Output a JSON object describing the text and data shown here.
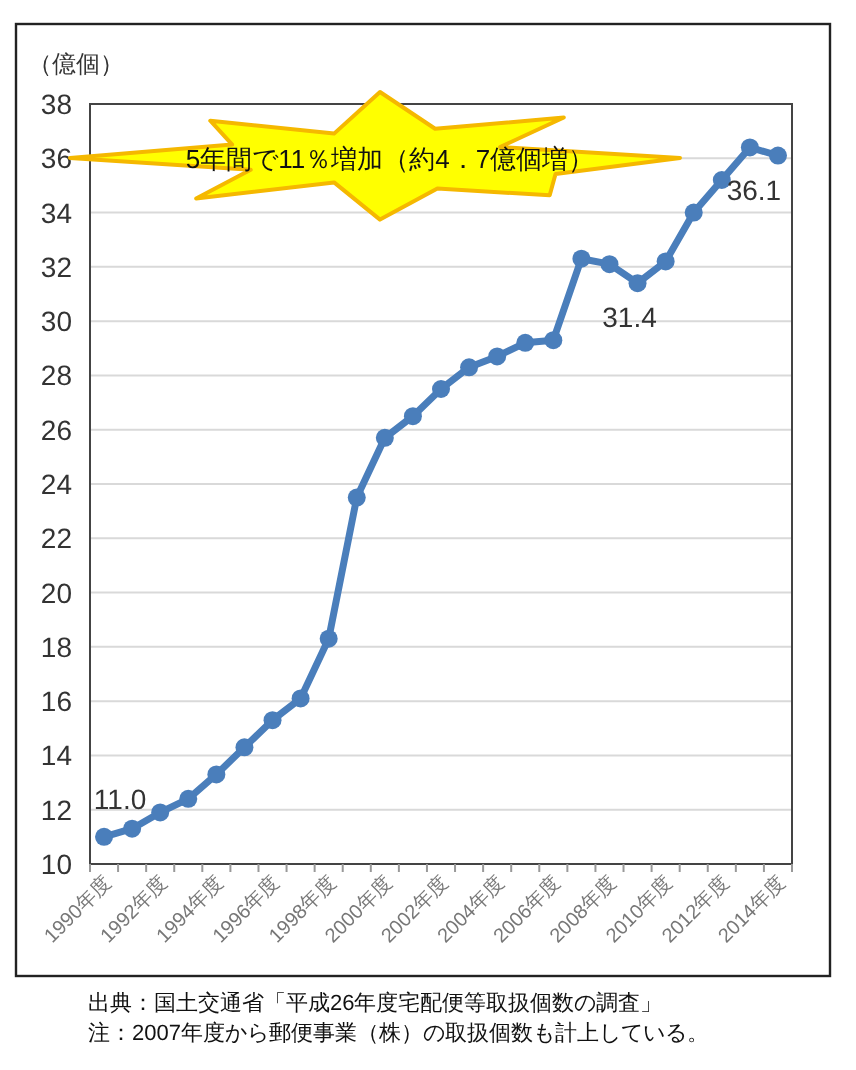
{
  "chart_data": {
    "type": "line",
    "ylabel": "（億個）",
    "categories": [
      "1990年度",
      null,
      "1992年度",
      null,
      "1994年度",
      null,
      "1996年度",
      null,
      "1998年度",
      null,
      "2000年度",
      null,
      "2002年度",
      null,
      "2004年度",
      null,
      "2006年度",
      null,
      "2008年度",
      null,
      "2010年度",
      null,
      "2012年度",
      null,
      "2014年度"
    ],
    "series": [
      {
        "color": "#4a7ebb",
        "values": [
          11.0,
          11.3,
          11.9,
          12.4,
          13.3,
          14.3,
          15.3,
          16.1,
          18.3,
          23.5,
          25.7,
          26.5,
          27.5,
          28.3,
          28.7,
          29.2,
          29.3,
          32.3,
          32.1,
          31.4,
          32.2,
          34.0,
          35.2,
          36.4,
          36.1
        ],
        "value_labels": [
          "11.0",
          null,
          null,
          null,
          null,
          null,
          null,
          null,
          null,
          null,
          null,
          null,
          null,
          null,
          null,
          null,
          null,
          null,
          null,
          "31.4",
          null,
          null,
          null,
          null,
          "36.1"
        ]
      }
    ],
    "ylim": [
      10,
      38
    ],
    "yticks": [
      10,
      12,
      14,
      16,
      18,
      20,
      22,
      24,
      26,
      28,
      30,
      32,
      34,
      36,
      38
    ],
    "grid": "y",
    "marker": "circle",
    "annotations": [
      "5年間で11％増加（約4．7億個増）",
      "出典：国土交通省「平成26年度宅配便等取扱個数の調査」",
      "注：2007年度から郵便事業（株）の取扱個数も計上している。"
    ]
  }
}
